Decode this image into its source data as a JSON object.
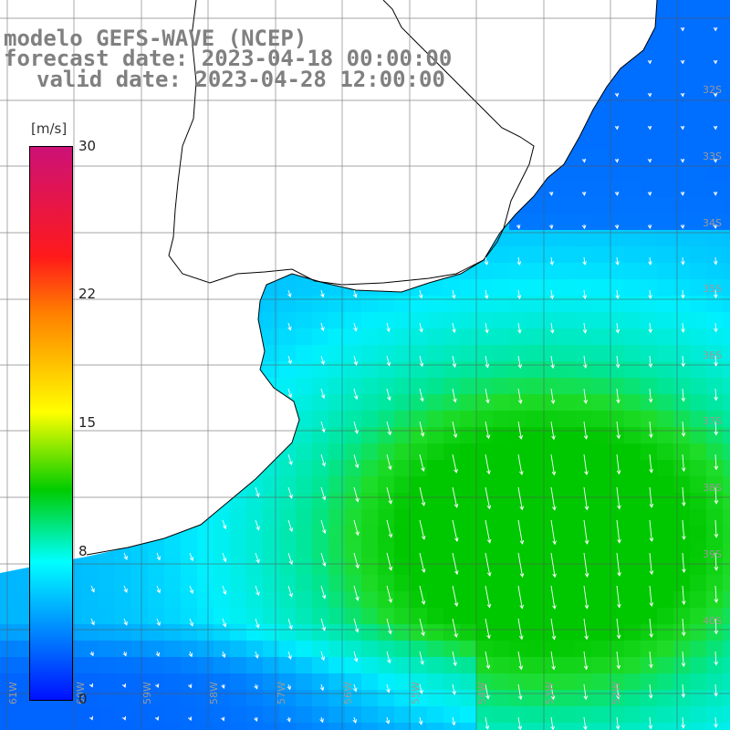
{
  "title": {
    "line1": "modelo GEFS-WAVE (NCEP)",
    "line2": "forecast date: 2023-04-18 00:00:00",
    "line3": "valid date: 2023-04-28 12:00:00"
  },
  "colorbar": {
    "units": "[m/s]",
    "tick_labels": [
      "30",
      "22",
      "15",
      "8",
      "0"
    ],
    "tick_values": [
      30,
      22,
      15,
      8,
      0
    ],
    "min": 0,
    "max": 30
  },
  "lat_labels": [
    "32S",
    "33S",
    "34S",
    "35S",
    "36S",
    "37S",
    "38S",
    "39S",
    "40S"
  ],
  "lon_labels": [
    "61W",
    "60W",
    "59W",
    "58W",
    "57W",
    "56W",
    "55W",
    "54W",
    "53W",
    "52W"
  ],
  "map": {
    "gridlines": true,
    "wind_direction": "toward south-southeast",
    "ocean_color_low": "#1a5cff",
    "ocean_color_mid": "#00e0e0",
    "ocean_color_high": "#22dd00",
    "land_color": "#ffffff"
  }
}
